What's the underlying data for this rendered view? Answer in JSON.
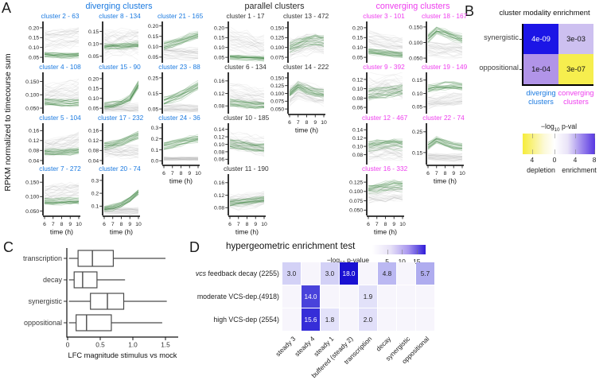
{
  "panel_labels": {
    "a": "A",
    "b": "B",
    "c": "C",
    "d": "D"
  },
  "chart_data": [
    {
      "id": "A",
      "type": "line",
      "ylabel": "RPKM normalized to timecourse sum",
      "xlabel": "time (h)",
      "x": [
        6,
        7,
        8,
        9,
        10
      ],
      "xticks": [
        "6",
        "7",
        "8",
        "9",
        "10"
      ],
      "series_colors": {
        "cluster_green": "#2e7d32",
        "background_grey": "#9f9f9f"
      },
      "groups": [
        {
          "title": "diverging clusters",
          "color": "#1b7ae0",
          "title_color": "#1b7ae0",
          "gap": 0,
          "cols": [
            [
              "c2",
              "c4",
              "c5",
              "c7"
            ],
            [
              "c8",
              "c15",
              "c17",
              "c20"
            ],
            [
              "c21",
              "c23",
              "c24"
            ]
          ]
        },
        {
          "title": "parallel clusters",
          "color": "#2b2b2b",
          "title_color": "#333333",
          "gap": 8,
          "cols": [
            [
              "c1",
              "c6",
              "c10",
              "c11"
            ],
            [
              "c13",
              "c14"
            ]
          ]
        },
        {
          "title": "converging clusters",
          "color": "#ee3fee",
          "title_color": "#ee3fee",
          "gap": 24,
          "cols": [
            [
              "c3",
              "c9",
              "c12",
              "c16"
            ],
            [
              "c18",
              "c19",
              "c22"
            ]
          ]
        }
      ],
      "clusters": {
        "c2": {
          "title": "cluster 2 - 63",
          "yticks": [
            "0.05",
            "0.10",
            "0.15",
            "0.20"
          ],
          "ymin": 0.03,
          "ymax": 0.22,
          "green": [
            0.065,
            0.062,
            0.06,
            0.06,
            0.063
          ],
          "grey": [
            0.13,
            0.135,
            0.14,
            0.147,
            0.155
          ],
          "gsp": 0.013,
          "wsp": 0.045
        },
        "c4": {
          "title": "cluster 4 - 108",
          "yticks": [
            "0.050",
            "0.100",
            "0.150"
          ],
          "ymin": 0.035,
          "ymax": 0.175,
          "green": [
            0.072,
            0.07,
            0.069,
            0.068,
            0.07
          ],
          "grey": [
            0.105,
            0.11,
            0.114,
            0.118,
            0.122
          ],
          "gsp": 0.011,
          "wsp": 0.032
        },
        "c5": {
          "title": "cluster 5 - 104",
          "yticks": [
            "0.04",
            "0.08",
            "0.12",
            "0.16"
          ],
          "ymin": 0.03,
          "ymax": 0.18,
          "green": [
            0.074,
            0.073,
            0.073,
            0.074,
            0.078
          ],
          "grey": [
            0.086,
            0.092,
            0.1,
            0.11,
            0.12
          ],
          "gsp": 0.011,
          "wsp": 0.028
        },
        "c7": {
          "title": "cluster 7 - 272",
          "yticks": [
            "0.050",
            "0.100",
            "0.150"
          ],
          "ymin": 0.04,
          "ymax": 0.17,
          "green": [
            0.085,
            0.084,
            0.084,
            0.085,
            0.086
          ],
          "grey": [
            0.105,
            0.107,
            0.11,
            0.112,
            0.115
          ],
          "gsp": 0.011,
          "wsp": 0.03
        },
        "c8": {
          "title": "cluster 8 - 134",
          "yticks": [
            "0.05",
            "0.10",
            "0.15"
          ],
          "ymin": 0.03,
          "ymax": 0.18,
          "green": [
            0.088,
            0.09,
            0.091,
            0.093,
            0.097
          ],
          "grey": [
            0.1,
            0.1,
            0.1,
            0.1,
            0.1
          ],
          "gsp": 0.011,
          "wsp": 0.055
        },
        "c15": {
          "title": "cluster 15 - 90",
          "yticks": [
            "0.05",
            "0.10",
            "0.15",
            "0.20"
          ],
          "ymin": 0.03,
          "ymax": 0.22,
          "green": [
            0.062,
            0.065,
            0.075,
            0.1,
            0.17
          ],
          "grey": [
            0.056,
            0.055,
            0.054,
            0.053,
            0.052
          ],
          "gsp": 0.016,
          "wsp": 0.02
        },
        "c17": {
          "title": "cluster 17 - 232",
          "yticks": [
            "0.04",
            "0.08",
            "0.12",
            "0.16"
          ],
          "ymin": 0.03,
          "ymax": 0.18,
          "green": [
            0.1,
            0.105,
            0.114,
            0.128,
            0.143
          ],
          "grey": [
            0.082,
            0.08,
            0.078,
            0.077,
            0.076
          ],
          "gsp": 0.013,
          "wsp": 0.024
        },
        "c20": {
          "title": "cluster 20 - 74",
          "yticks": [
            "0.1",
            "0.2",
            "0.3"
          ],
          "ymin": 0.04,
          "ymax": 0.33,
          "green": [
            0.08,
            0.09,
            0.11,
            0.15,
            0.21
          ],
          "grey": [
            0.07,
            0.068,
            0.067,
            0.066,
            0.065
          ],
          "gsp": 0.02,
          "wsp": 0.022
        },
        "c21": {
          "title": "cluster 21 - 165",
          "yticks": [
            "0.05",
            "0.10",
            "0.15",
            "0.20"
          ],
          "ymin": 0.03,
          "ymax": 0.21,
          "green": [
            0.105,
            0.115,
            0.13,
            0.145,
            0.155
          ],
          "grey": [
            0.07,
            0.068,
            0.066,
            0.065,
            0.064
          ],
          "gsp": 0.016,
          "wsp": 0.026
        },
        "c23": {
          "title": "cluster 23 - 88",
          "yticks": [
            "0.05",
            "0.15",
            "0.25"
          ],
          "ymin": 0.03,
          "ymax": 0.27,
          "green": [
            0.1,
            0.12,
            0.14,
            0.17,
            0.2
          ],
          "grey": [
            0.056,
            0.055,
            0.054,
            0.053,
            0.052
          ],
          "gsp": 0.025,
          "wsp": 0.022
        },
        "c24": {
          "title": "cluster 24 - 36",
          "yticks": [
            "0.0",
            "0.1",
            "0.2",
            "0.3"
          ],
          "ymin": -0.02,
          "ymax": 0.32,
          "green": [
            0.13,
            0.15,
            0.17,
            0.19,
            0.2
          ],
          "grey": [
            0.02,
            0.02,
            0.02,
            0.02,
            0.02
          ],
          "gsp": 0.03,
          "wsp": 0.013
        },
        "c1": {
          "title": "cluster 1 - 17",
          "yticks": [
            "0.05",
            "0.10",
            "0.15",
            "0.20"
          ],
          "ymin": 0.03,
          "ymax": 0.22,
          "green": [
            0.05,
            0.048,
            0.046,
            0.044,
            0.042
          ],
          "grey": [
            0.14,
            0.132,
            0.122,
            0.112,
            0.103
          ],
          "gsp": 0.01,
          "wsp": 0.05
        },
        "c6": {
          "title": "cluster 6 - 134",
          "yticks": [
            "0.08",
            "0.12",
            "0.16"
          ],
          "ymin": 0.06,
          "ymax": 0.18,
          "green": [
            0.09,
            0.088,
            0.085,
            0.083,
            0.082
          ],
          "grey": [
            0.115,
            0.112,
            0.108,
            0.105,
            0.101
          ],
          "gsp": 0.01,
          "wsp": 0.03
        },
        "c10": {
          "title": "cluster 10 - 185",
          "yticks": [
            "0.06",
            "0.08",
            "0.10",
            "0.12",
            "0.14"
          ],
          "ymin": 0.05,
          "ymax": 0.15,
          "green": [
            0.1,
            0.098,
            0.094,
            0.091,
            0.089
          ],
          "grey": [
            0.106,
            0.104,
            0.101,
            0.098,
            0.095
          ],
          "gsp": 0.01,
          "wsp": 0.022
        },
        "c11": {
          "title": "cluster 11 - 190",
          "yticks": [
            "0.08",
            "0.12",
            "0.16"
          ],
          "ymin": 0.06,
          "ymax": 0.18,
          "green": [
            0.095,
            0.096,
            0.098,
            0.102,
            0.105
          ],
          "grey": [
            0.1,
            0.1,
            0.102,
            0.104,
            0.107
          ],
          "gsp": 0.01,
          "wsp": 0.022
        },
        "c13": {
          "title": "cluster 13 - 472",
          "yticks": [
            "0.075",
            "0.100",
            "0.125",
            "0.150"
          ],
          "ymin": 0.065,
          "ymax": 0.16,
          "green": [
            0.1,
            0.108,
            0.115,
            0.118,
            0.115
          ],
          "grey": [
            0.094,
            0.1,
            0.105,
            0.104,
            0.1
          ],
          "gsp": 0.012,
          "wsp": 0.024
        },
        "c14": {
          "title": "cluster 14 - 222",
          "yticks": [
            "0.050",
            "0.075",
            "0.100",
            "0.125",
            "0.150"
          ],
          "ymin": 0.04,
          "ymax": 0.16,
          "green": [
            0.1,
            0.125,
            0.113,
            0.104,
            0.099
          ],
          "grey": [
            0.093,
            0.113,
            0.103,
            0.096,
            0.091
          ],
          "gsp": 0.012,
          "wsp": 0.024
        },
        "c3": {
          "title": "cluster 3 - 101",
          "yticks": [
            "0.05",
            "0.10",
            "0.15",
            "0.20"
          ],
          "ymin": 0.03,
          "ymax": 0.22,
          "green": [
            0.08,
            0.075,
            0.07,
            0.066,
            0.062
          ],
          "grey": [
            0.14,
            0.13,
            0.12,
            0.112,
            0.106
          ],
          "gsp": 0.013,
          "wsp": 0.038
        },
        "c9": {
          "title": "cluster 9 - 392",
          "yticks": [
            "0.06",
            "0.08",
            "0.10",
            "0.12"
          ],
          "ymin": 0.05,
          "ymax": 0.13,
          "green": [
            0.088,
            0.09,
            0.093,
            0.096,
            0.098
          ],
          "grey": [
            0.104,
            0.107,
            0.11,
            0.108,
            0.105
          ],
          "gsp": 0.01,
          "wsp": 0.025
        },
        "c12": {
          "title": "cluster 12 - 467",
          "yticks": [
            "0.08",
            "0.10",
            "0.12",
            "0.14"
          ],
          "ymin": 0.06,
          "ymax": 0.15,
          "green": [
            0.1,
            0.103,
            0.105,
            0.106,
            0.105
          ],
          "grey": [
            0.088,
            0.09,
            0.092,
            0.09,
            0.089
          ],
          "gsp": 0.011,
          "wsp": 0.02
        },
        "c16": {
          "title": "cluster 16 - 332",
          "yticks": [
            "0.050",
            "0.075",
            "0.100",
            "0.125"
          ],
          "ymin": 0.04,
          "ymax": 0.14,
          "green": [
            0.105,
            0.108,
            0.112,
            0.115,
            0.115
          ],
          "grey": [
            0.09,
            0.092,
            0.093,
            0.094,
            0.095
          ],
          "gsp": 0.012,
          "wsp": 0.018
        },
        "c18": {
          "title": "cluster 18 - 167",
          "yticks": [
            "0.050",
            "0.100",
            "0.150"
          ],
          "ymin": 0.04,
          "ymax": 0.16,
          "green": [
            0.115,
            0.14,
            0.13,
            0.12,
            0.112
          ],
          "grey": [
            0.08,
            0.078,
            0.077,
            0.076,
            0.075
          ],
          "gsp": 0.014,
          "wsp": 0.022
        },
        "c19": {
          "title": "cluster 19 - 149",
          "yticks": [
            "0.05",
            "0.10",
            "0.15"
          ],
          "ymin": 0.03,
          "ymax": 0.17,
          "green": [
            0.12,
            0.125,
            0.13,
            0.13,
            0.128
          ],
          "grey": [
            0.066,
            0.07,
            0.075,
            0.079,
            0.08
          ],
          "gsp": 0.013,
          "wsp": 0.022
        },
        "c22": {
          "title": "cluster 22 - 74",
          "yticks": [
            "0.15",
            "0.25"
          ],
          "ymin": 0.1,
          "ymax": 0.28,
          "green": [
            0.18,
            0.21,
            0.195,
            0.182,
            0.176
          ],
          "grey": [
            0.13,
            0.128,
            0.127,
            0.126,
            0.125
          ],
          "gsp": 0.016,
          "wsp": 0.016
        }
      }
    },
    {
      "id": "B",
      "type": "heatmap",
      "title": "cluster modality enrichment",
      "rows": [
        "synergistic",
        "oppositional"
      ],
      "cols": [
        [
          "diverging",
          "clusters"
        ],
        [
          "converging",
          "clusters"
        ]
      ],
      "col_colors": [
        "#1b7ae0",
        "#ee3fee"
      ],
      "values": [
        [
          "4e-09",
          "3e-03"
        ],
        [
          "1e-04",
          "3e-07"
        ]
      ],
      "cell_colors": [
        [
          "#1c15e6",
          "#cdc0f0"
        ],
        [
          "#b194e8",
          "#f6ee4e"
        ]
      ],
      "text_colors": [
        [
          "#ffffff",
          "#111111"
        ],
        [
          "#111111",
          "#111111"
        ]
      ],
      "colorbar": {
        "label_pre": "−log",
        "label_sub": "10",
        "label_post": " p-val",
        "ticks": [
          "4",
          "0",
          "4",
          "8"
        ],
        "tick_pos": [
          0.13,
          0.44,
          0.725,
          0.99
        ],
        "left_label": "depletion",
        "right_label": "enrichment"
      }
    },
    {
      "id": "C",
      "type": "box",
      "categories": [
        "transcription",
        "decay",
        "synergistic",
        "oppositional"
      ],
      "stats": [
        {
          "min": 0.02,
          "q1": 0.16,
          "med": 0.38,
          "q3": 0.7,
          "max": 1.5
        },
        {
          "min": 0.02,
          "q1": 0.1,
          "med": 0.23,
          "q3": 0.45,
          "max": 0.88
        },
        {
          "min": 0.02,
          "q1": 0.35,
          "med": 0.61,
          "q3": 0.86,
          "max": 1.52
        },
        {
          "min": 0.02,
          "q1": 0.13,
          "med": 0.29,
          "q3": 0.67,
          "max": 1.45
        }
      ],
      "xlabel": "LFC magnitude stimulus vs mock",
      "xticks": [
        "0",
        "0.5",
        "1.0",
        "1.5"
      ],
      "xtick_vals": [
        0,
        0.5,
        1.0,
        1.5
      ]
    },
    {
      "id": "D",
      "type": "heatmap",
      "title": "hypergeometric enrichment test",
      "rows": [
        {
          "italic": "vcs",
          "label": " feedback decay (2255)"
        },
        {
          "italic": "",
          "label": "moderate VCS-dep.(4918)"
        },
        {
          "italic": "",
          "label": "high VCS-dep (2554)"
        }
      ],
      "cols": [
        "steady 3",
        "steady 4",
        "steady 1",
        "buffered (steady 2)",
        "transcription",
        "decay",
        "synergistic",
        "oppositional"
      ],
      "values": [
        [
          3.0,
          null,
          3.0,
          18.0,
          null,
          4.8,
          null,
          5.7
        ],
        [
          null,
          14.0,
          null,
          null,
          1.9,
          null,
          null,
          null
        ],
        [
          null,
          15.6,
          1.8,
          null,
          2.0,
          null,
          null,
          null
        ]
      ],
      "scale_max": 18,
      "colorbar": {
        "label_pre": "−log",
        "label_sub": "10",
        "label_post": " p-value",
        "ticks": [
          "5",
          "10",
          "15"
        ],
        "tick_vals": [
          5,
          10,
          15
        ]
      }
    }
  ]
}
